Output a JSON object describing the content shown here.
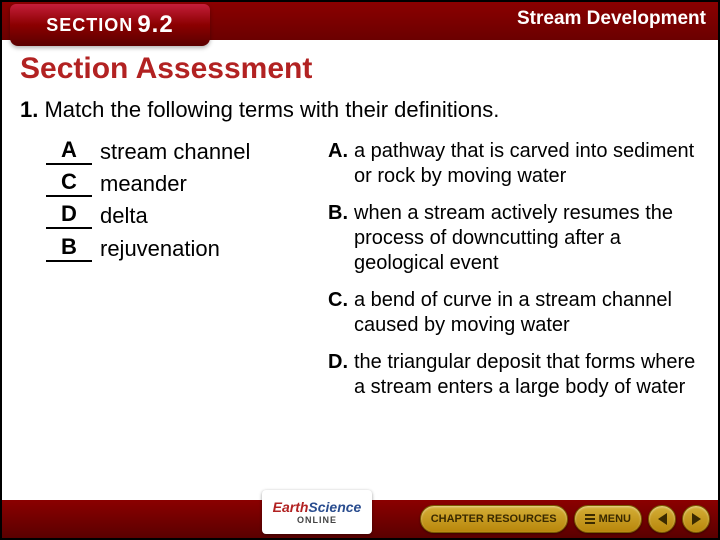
{
  "header": {
    "section_label": "SECTION",
    "section_number": "9.2",
    "topic": "Stream Development"
  },
  "content": {
    "title": "Section Assessment",
    "question_number": "1.",
    "question_text": "Match the following terms with their definitions.",
    "matches": [
      {
        "answer": "A",
        "term": "stream channel"
      },
      {
        "answer": "C",
        "term": "meander"
      },
      {
        "answer": "D",
        "term": "delta"
      },
      {
        "answer": "B",
        "term": "rejuvenation"
      }
    ],
    "definitions": [
      {
        "letter": "A.",
        "text": "a pathway that is carved into sediment or rock by moving water"
      },
      {
        "letter": "B.",
        "text": "when a stream actively resumes the process of downcutting after a geological event"
      },
      {
        "letter": "C.",
        "text": "a bend of curve in a stream channel caused by moving water"
      },
      {
        "letter": "D.",
        "text": "the triangular deposit that forms where a stream enters a large body of water"
      }
    ]
  },
  "footer": {
    "logo_line1a": "Earth",
    "logo_line1b": "Science",
    "logo_line2": "ONLINE",
    "chapter_btn": "CHAPTER RESOURCES",
    "menu_btn": "MENU"
  },
  "colors": {
    "header_red": "#8b0000",
    "title_red": "#b22222",
    "gold": "#d4af37"
  }
}
